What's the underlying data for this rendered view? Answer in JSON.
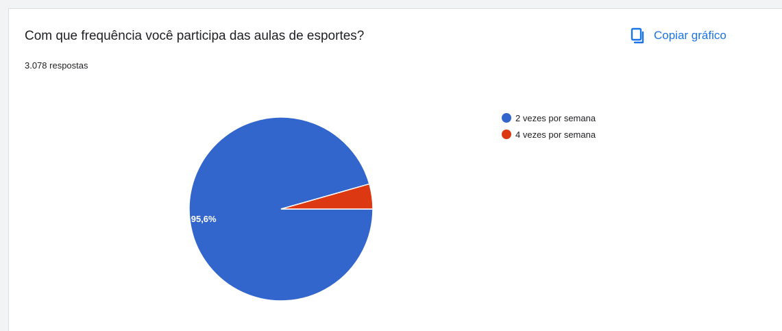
{
  "header": {
    "title": "Com que frequência você participa das aulas de esportes?",
    "responses": "3.078 respostas"
  },
  "toolbar": {
    "copy_label": "Copiar gráfico",
    "copy_icon": "copy-icon"
  },
  "chart_data": {
    "type": "pie",
    "categories": [
      "2 vezes por semana",
      "4 vezes por semana"
    ],
    "values": [
      95.6,
      4.4
    ],
    "colors": [
      "#3366cc",
      "#dc3912"
    ],
    "data_labels": [
      "95,6%",
      ""
    ],
    "legend_position": "right"
  }
}
